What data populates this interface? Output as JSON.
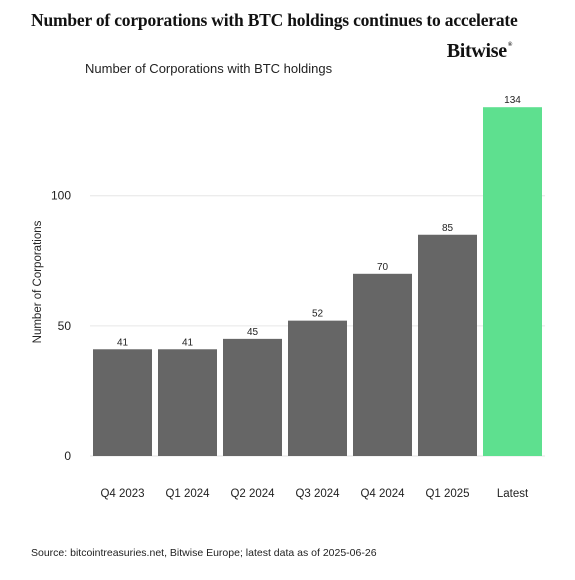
{
  "headline": "Number of corporations with BTC holdings continues to accelerate",
  "brand": {
    "name": "Bitwise",
    "mark": "®"
  },
  "source": "Source: bitcointreasuries.net, Bitwise Europe; latest data as of 2025-06-26",
  "colors": {
    "bar_default": "#666666",
    "bar_highlight": "#5ee08f",
    "grid": "#e6e6e6",
    "text": "#222222"
  },
  "chart_data": {
    "type": "bar",
    "title": "Number of Corporations with BTC holdings",
    "xlabel": "",
    "ylabel": "Number of Corporations",
    "categories": [
      "Q4 2023",
      "Q1 2024",
      "Q2 2024",
      "Q3 2024",
      "Q4 2024",
      "Q1 2025",
      "Latest"
    ],
    "values": [
      41,
      41,
      45,
      52,
      70,
      85,
      134
    ],
    "highlight": [
      "Latest"
    ],
    "ylim": [
      0,
      136
    ],
    "yticks": [
      0,
      50,
      100
    ],
    "grid": true,
    "legend": "none",
    "data_labels": true
  }
}
